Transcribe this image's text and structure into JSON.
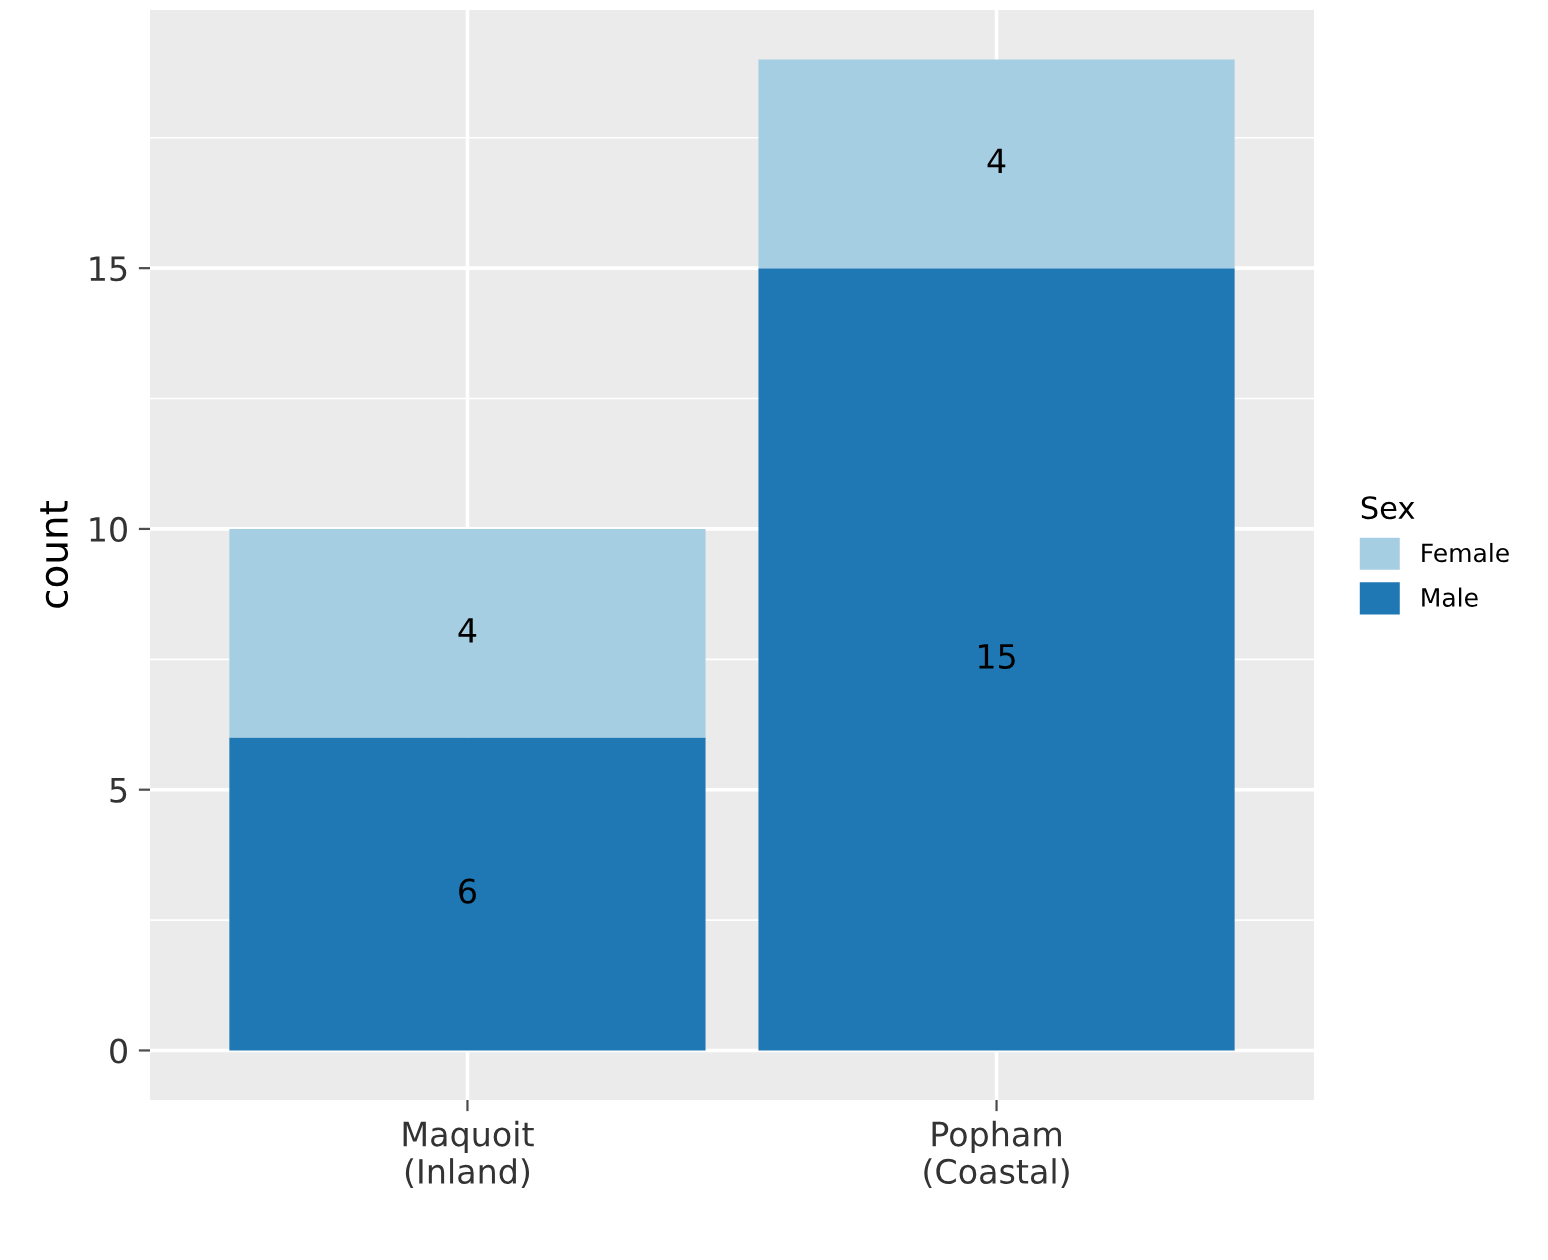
{
  "chart_data": {
    "type": "bar",
    "stacked": true,
    "ylabel": "count",
    "legend_title": "Sex",
    "categories": [
      "Maquoit\n(Inland)",
      "Popham\n(Coastal)"
    ],
    "series": [
      {
        "name": "Male",
        "color": "#1f78b4",
        "values": [
          6,
          15
        ]
      },
      {
        "name": "Female",
        "color": "#a6cee3",
        "values": [
          4,
          4
        ]
      }
    ],
    "ylim": [
      -0.95,
      19.95
    ],
    "yticks": [
      0,
      5,
      10,
      15
    ],
    "grid": true,
    "legend": "right",
    "data_labels": true
  }
}
